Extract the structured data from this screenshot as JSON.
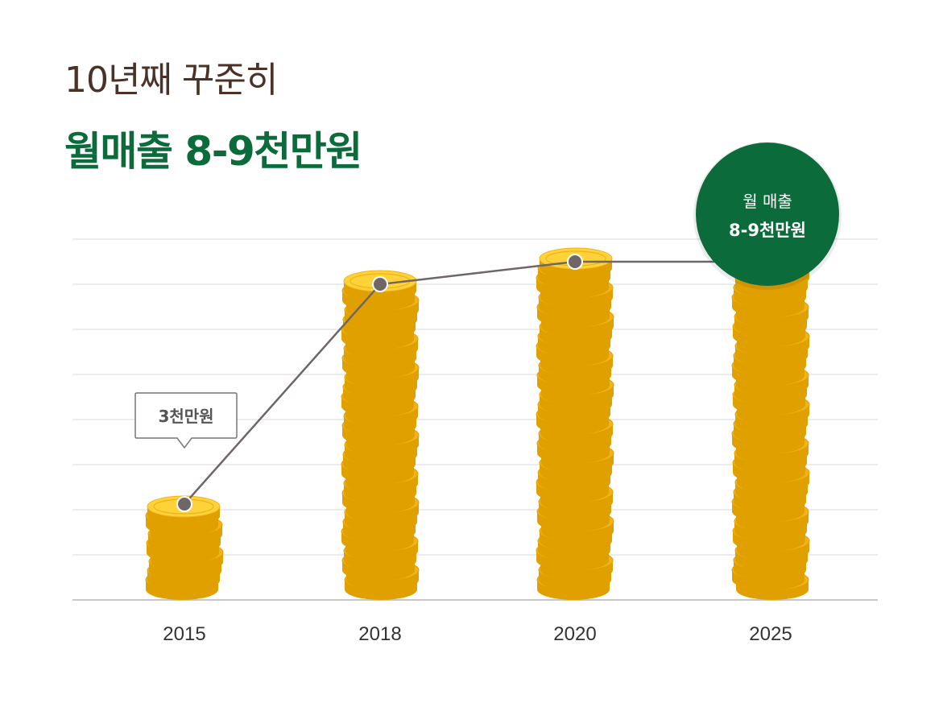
{
  "heading": {
    "line1": "10년째 꾸준히",
    "line2": "월매출 8-9천만원"
  },
  "colors": {
    "brand_green": "#0b6b3a",
    "heading_brown": "#4a3226",
    "coin_gold": "#f2b21a",
    "coin_dark": "#e0a000",
    "coin_light": "#ffd23a",
    "line_gray": "#6f6666",
    "grid": "#e6e6e6"
  },
  "chart_data": {
    "type": "bar",
    "categories": [
      "2015",
      "2018",
      "2020",
      "2025"
    ],
    "values": [
      2,
      7,
      7.5,
      7.5
    ],
    "ylim": [
      0,
      8
    ],
    "grid": true,
    "annotations": [
      {
        "category": "2015",
        "text": "3천만원",
        "style": "speech-bubble"
      },
      {
        "category": "2025",
        "text_line1": "월 매출",
        "text_line2": "8-9천만원",
        "style": "green-circle-badge"
      }
    ],
    "line_overlay": true,
    "bar_style": "coin-stacks"
  }
}
